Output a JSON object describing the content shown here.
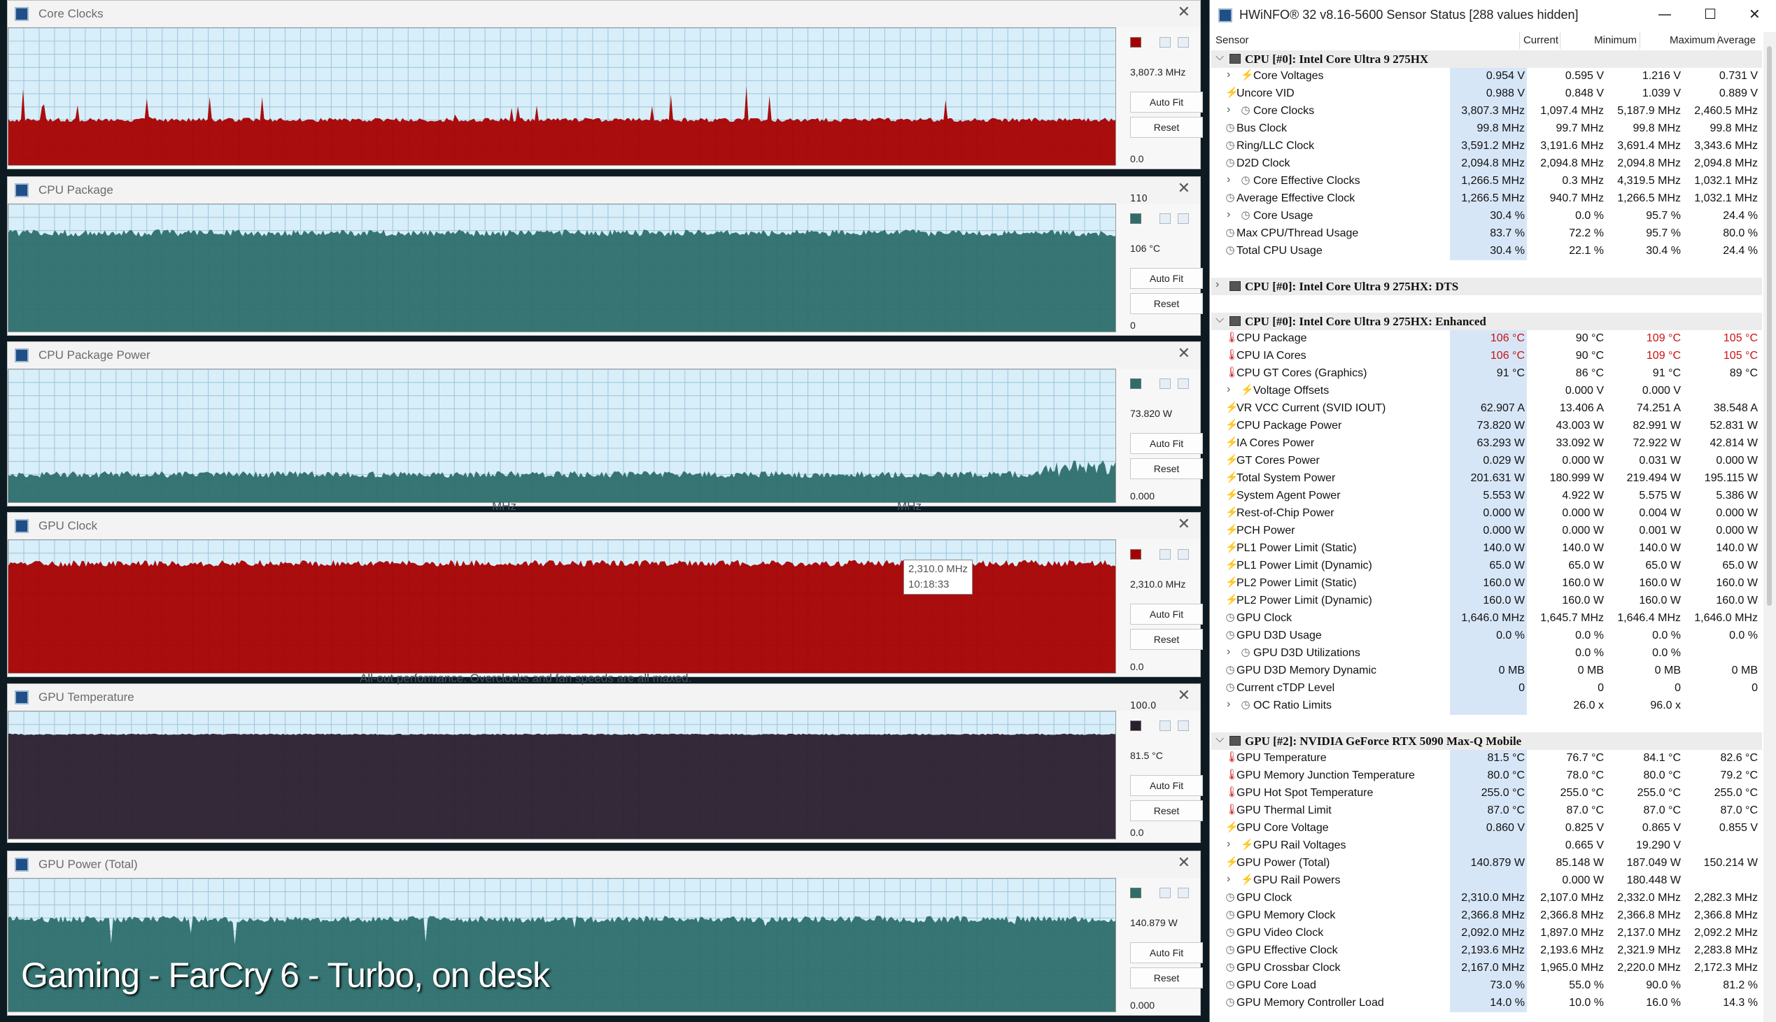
{
  "graphs": [
    {
      "title": "Core Clocks",
      "top_label": "",
      "current": "3,807.3 MHz",
      "bottom": "0.0",
      "autofit": "Auto Fit",
      "reset": "Reset",
      "fill_color": "#a80000",
      "bg": "#d8eef9",
      "level": 0.33,
      "spike_style": "spikes"
    },
    {
      "title": "CPU Package",
      "top_label": "110",
      "current": "106 °C",
      "bottom": "0",
      "autofit": "Auto Fit",
      "reset": "Reset",
      "fill_color": "#2d6e6b",
      "bg": "#d8eef9",
      "level": 0.78,
      "spike_style": "dense"
    },
    {
      "title": "CPU Package Power",
      "top_label": "",
      "current": "73.820 W",
      "bottom": "0.000",
      "autofit": "Auto Fit",
      "reset": "Reset",
      "fill_color": "#2d6e6b",
      "bg": "#d8eef9",
      "level": 0.22,
      "spike_style": "low"
    },
    {
      "title": "GPU Clock",
      "top_label": "",
      "current": "2,310.0 MHz",
      "bottom": "0.0",
      "autofit": "Auto Fit",
      "reset": "Reset",
      "fill_color": "#a80000",
      "bg": "#d8eef9",
      "level": 0.83,
      "spike_style": "dense"
    },
    {
      "title": "GPU Temperature",
      "top_label": "100.0",
      "current": "81.5 °C",
      "bottom": "0.0",
      "autofit": "Auto Fit",
      "reset": "Reset",
      "fill_color": "#2b1e2e",
      "bg": "#d8eef9",
      "level": 0.82,
      "spike_style": "flat"
    },
    {
      "title": "GPU Power (Total)",
      "top_label": "",
      "current": "140.879 W",
      "bottom": "0.000",
      "autofit": "Auto Fit",
      "reset": "Reset",
      "fill_color": "#2d6e6b",
      "bg": "#d8eef9",
      "level": 0.7,
      "spike_style": "dips"
    }
  ],
  "tooltip": {
    "line1": "2,310.0 MHz",
    "line2": "10:18:33"
  },
  "background_texts": {
    "mhz_a": "MHz",
    "mhz_b": "MHz",
    "profile_desc": "All-out performance. Overclocks and fan speeds are all maxed."
  },
  "caption": "Gaming - FarCry 6 - Turbo, on desk",
  "hwinfo": {
    "title": "HWiNFO® 32 v8.16-5600 Sensor Status [288 values hidden]",
    "columns": {
      "sensor": "Sensor",
      "current": "Current",
      "minimum": "Minimum",
      "maximum": "Maximum",
      "average": "Average"
    },
    "rows": [
      {
        "type": "group",
        "name": "CPU [#0]: Intel Core Ultra 9 275HX",
        "expanded": true
      },
      {
        "name": "Core Voltages",
        "icon": "volt",
        "sub": true,
        "c": "0.954 V",
        "mn": "0.595 V",
        "mx": "1.216 V",
        "av": "0.731 V"
      },
      {
        "name": "Uncore VID",
        "icon": "volt",
        "c": "0.988 V",
        "mn": "0.848 V",
        "mx": "1.039 V",
        "av": "0.889 V"
      },
      {
        "name": "Core Clocks",
        "icon": "clk",
        "sub": true,
        "c": "3,807.3 MHz",
        "mn": "1,097.4 MHz",
        "mx": "5,187.9 MHz",
        "av": "2,460.5 MHz"
      },
      {
        "name": "Bus Clock",
        "icon": "clk",
        "c": "99.8 MHz",
        "mn": "99.7 MHz",
        "mx": "99.8 MHz",
        "av": "99.8 MHz"
      },
      {
        "name": "Ring/LLC Clock",
        "icon": "clk",
        "c": "3,591.2 MHz",
        "mn": "3,191.6 MHz",
        "mx": "3,691.4 MHz",
        "av": "3,343.6 MHz"
      },
      {
        "name": "D2D Clock",
        "icon": "clk",
        "c": "2,094.8 MHz",
        "mn": "2,094.8 MHz",
        "mx": "2,094.8 MHz",
        "av": "2,094.8 MHz"
      },
      {
        "name": "Core Effective Clocks",
        "icon": "clk",
        "sub": true,
        "c": "1,266.5 MHz",
        "mn": "0.3 MHz",
        "mx": "4,319.5 MHz",
        "av": "1,032.1 MHz"
      },
      {
        "name": "Average Effective Clock",
        "icon": "clk",
        "c": "1,266.5 MHz",
        "mn": "940.7 MHz",
        "mx": "1,266.5 MHz",
        "av": "1,032.1 MHz"
      },
      {
        "name": "Core Usage",
        "icon": "clk",
        "sub": true,
        "c": "30.4 %",
        "mn": "0.0 %",
        "mx": "95.7 %",
        "av": "24.4 %"
      },
      {
        "name": "Max CPU/Thread Usage",
        "icon": "clk",
        "c": "83.7 %",
        "mn": "72.2 %",
        "mx": "95.7 %",
        "av": "80.0 %"
      },
      {
        "name": "Total CPU Usage",
        "icon": "clk",
        "c": "30.4 %",
        "mn": "22.1 %",
        "mx": "30.4 %",
        "av": "24.4 %"
      },
      {
        "type": "gap"
      },
      {
        "type": "group",
        "name": "CPU [#0]: Intel Core Ultra 9 275HX: DTS",
        "expanded": false
      },
      {
        "type": "gap"
      },
      {
        "type": "group",
        "name": "CPU [#0]: Intel Core Ultra 9 275HX: Enhanced",
        "expanded": true
      },
      {
        "name": "CPU Package",
        "icon": "tmp",
        "c": "106 °C",
        "mn": "90 °C",
        "mx": "109 °C",
        "av": "105 °C",
        "red": true
      },
      {
        "name": "CPU IA Cores",
        "icon": "tmp",
        "c": "106 °C",
        "mn": "90 °C",
        "mx": "109 °C",
        "av": "105 °C",
        "red": true
      },
      {
        "name": "CPU GT Cores (Graphics)",
        "icon": "tmp",
        "c": "91 °C",
        "mn": "86 °C",
        "mx": "91 °C",
        "av": "89 °C"
      },
      {
        "name": "Voltage Offsets",
        "icon": "volt",
        "sub": true,
        "c": "",
        "mn": "0.000 V",
        "mx": "0.000 V",
        "av": ""
      },
      {
        "name": "VR VCC Current (SVID IOUT)",
        "icon": "volt",
        "c": "62.907 A",
        "mn": "13.406 A",
        "mx": "74.251 A",
        "av": "38.548 A"
      },
      {
        "name": "CPU Package Power",
        "icon": "volt",
        "c": "73.820 W",
        "mn": "43.003 W",
        "mx": "82.991 W",
        "av": "52.831 W"
      },
      {
        "name": "IA Cores Power",
        "icon": "volt",
        "c": "63.293 W",
        "mn": "33.092 W",
        "mx": "72.922 W",
        "av": "42.814 W"
      },
      {
        "name": "GT Cores Power",
        "icon": "volt",
        "c": "0.029 W",
        "mn": "0.000 W",
        "mx": "0.031 W",
        "av": "0.000 W"
      },
      {
        "name": "Total System Power",
        "icon": "volt",
        "c": "201.631 W",
        "mn": "180.999 W",
        "mx": "219.494 W",
        "av": "195.115 W"
      },
      {
        "name": "System Agent Power",
        "icon": "volt",
        "c": "5.553 W",
        "mn": "4.922 W",
        "mx": "5.575 W",
        "av": "5.386 W"
      },
      {
        "name": "Rest-of-Chip Power",
        "icon": "volt",
        "c": "0.000 W",
        "mn": "0.000 W",
        "mx": "0.004 W",
        "av": "0.000 W"
      },
      {
        "name": "PCH Power",
        "icon": "volt",
        "c": "0.000 W",
        "mn": "0.000 W",
        "mx": "0.001 W",
        "av": "0.000 W"
      },
      {
        "name": "PL1 Power Limit (Static)",
        "icon": "volt",
        "c": "140.0 W",
        "mn": "140.0 W",
        "mx": "140.0 W",
        "av": "140.0 W"
      },
      {
        "name": "PL1 Power Limit (Dynamic)",
        "icon": "volt",
        "c": "65.0 W",
        "mn": "65.0 W",
        "mx": "65.0 W",
        "av": "65.0 W"
      },
      {
        "name": "PL2 Power Limit (Static)",
        "icon": "volt",
        "c": "160.0 W",
        "mn": "160.0 W",
        "mx": "160.0 W",
        "av": "160.0 W"
      },
      {
        "name": "PL2 Power Limit (Dynamic)",
        "icon": "volt",
        "c": "160.0 W",
        "mn": "160.0 W",
        "mx": "160.0 W",
        "av": "160.0 W"
      },
      {
        "name": "GPU Clock",
        "icon": "clk",
        "c": "1,646.0 MHz",
        "mn": "1,645.7 MHz",
        "mx": "1,646.4 MHz",
        "av": "1,646.0 MHz"
      },
      {
        "name": "GPU D3D Usage",
        "icon": "clk",
        "c": "0.0 %",
        "mn": "0.0 %",
        "mx": "0.0 %",
        "av": "0.0 %"
      },
      {
        "name": "GPU D3D Utilizations",
        "icon": "clk",
        "sub": true,
        "c": "",
        "mn": "0.0 %",
        "mx": "0.0 %",
        "av": ""
      },
      {
        "name": "GPU D3D Memory Dynamic",
        "icon": "clk",
        "c": "0 MB",
        "mn": "0 MB",
        "mx": "0 MB",
        "av": "0 MB"
      },
      {
        "name": "Current cTDP Level",
        "icon": "clk",
        "c": "0",
        "mn": "0",
        "mx": "0",
        "av": "0"
      },
      {
        "name": "OC Ratio Limits",
        "icon": "clk",
        "sub": true,
        "c": "",
        "mn": "26.0 x",
        "mx": "96.0 x",
        "av": ""
      },
      {
        "type": "gap"
      },
      {
        "type": "group",
        "name": "GPU [#2]: NVIDIA  GeForce RTX 5090 Max-Q Mobile",
        "expanded": true
      },
      {
        "name": "GPU Temperature",
        "icon": "tmp",
        "c": "81.5 °C",
        "mn": "76.7 °C",
        "mx": "84.1 °C",
        "av": "82.6 °C"
      },
      {
        "name": "GPU Memory Junction Temperature",
        "icon": "tmp",
        "c": "80.0 °C",
        "mn": "78.0 °C",
        "mx": "80.0 °C",
        "av": "79.2 °C"
      },
      {
        "name": "GPU Hot Spot Temperature",
        "icon": "tmp",
        "c": "255.0 °C",
        "mn": "255.0 °C",
        "mx": "255.0 °C",
        "av": "255.0 °C"
      },
      {
        "name": "GPU Thermal Limit",
        "icon": "tmp",
        "c": "87.0 °C",
        "mn": "87.0 °C",
        "mx": "87.0 °C",
        "av": "87.0 °C"
      },
      {
        "name": "GPU Core Voltage",
        "icon": "volt",
        "c": "0.860 V",
        "mn": "0.825 V",
        "mx": "0.865 V",
        "av": "0.855 V"
      },
      {
        "name": "GPU Rail Voltages",
        "icon": "volt",
        "sub": true,
        "c": "",
        "mn": "0.665 V",
        "mx": "19.290 V",
        "av": ""
      },
      {
        "name": "GPU Power (Total)",
        "icon": "volt",
        "c": "140.879 W",
        "mn": "85.148 W",
        "mx": "187.049 W",
        "av": "150.214 W"
      },
      {
        "name": "GPU Rail Powers",
        "icon": "volt",
        "sub": true,
        "c": "",
        "mn": "0.000 W",
        "mx": "180.448 W",
        "av": ""
      },
      {
        "name": "GPU Clock",
        "icon": "clk",
        "c": "2,310.0 MHz",
        "mn": "2,107.0 MHz",
        "mx": "2,332.0 MHz",
        "av": "2,282.3 MHz"
      },
      {
        "name": "GPU Memory Clock",
        "icon": "clk",
        "c": "2,366.8 MHz",
        "mn": "2,366.8 MHz",
        "mx": "2,366.8 MHz",
        "av": "2,366.8 MHz"
      },
      {
        "name": "GPU Video Clock",
        "icon": "clk",
        "c": "2,092.0 MHz",
        "mn": "1,897.0 MHz",
        "mx": "2,137.0 MHz",
        "av": "2,092.2 MHz"
      },
      {
        "name": "GPU Effective Clock",
        "icon": "clk",
        "c": "2,193.6 MHz",
        "mn": "2,193.6 MHz",
        "mx": "2,321.9 MHz",
        "av": "2,283.8 MHz"
      },
      {
        "name": "GPU Crossbar Clock",
        "icon": "clk",
        "c": "2,167.0 MHz",
        "mn": "1,965.0 MHz",
        "mx": "2,220.0 MHz",
        "av": "2,172.3 MHz"
      },
      {
        "name": "GPU Core Load",
        "icon": "clk",
        "c": "73.0 %",
        "mn": "55.0 %",
        "mx": "90.0 %",
        "av": "81.2 %"
      },
      {
        "name": "GPU Memory Controller Load",
        "icon": "clk",
        "c": "14.0 %",
        "mn": "10.0 %",
        "mx": "16.0 %",
        "av": "14.3 %"
      }
    ]
  }
}
